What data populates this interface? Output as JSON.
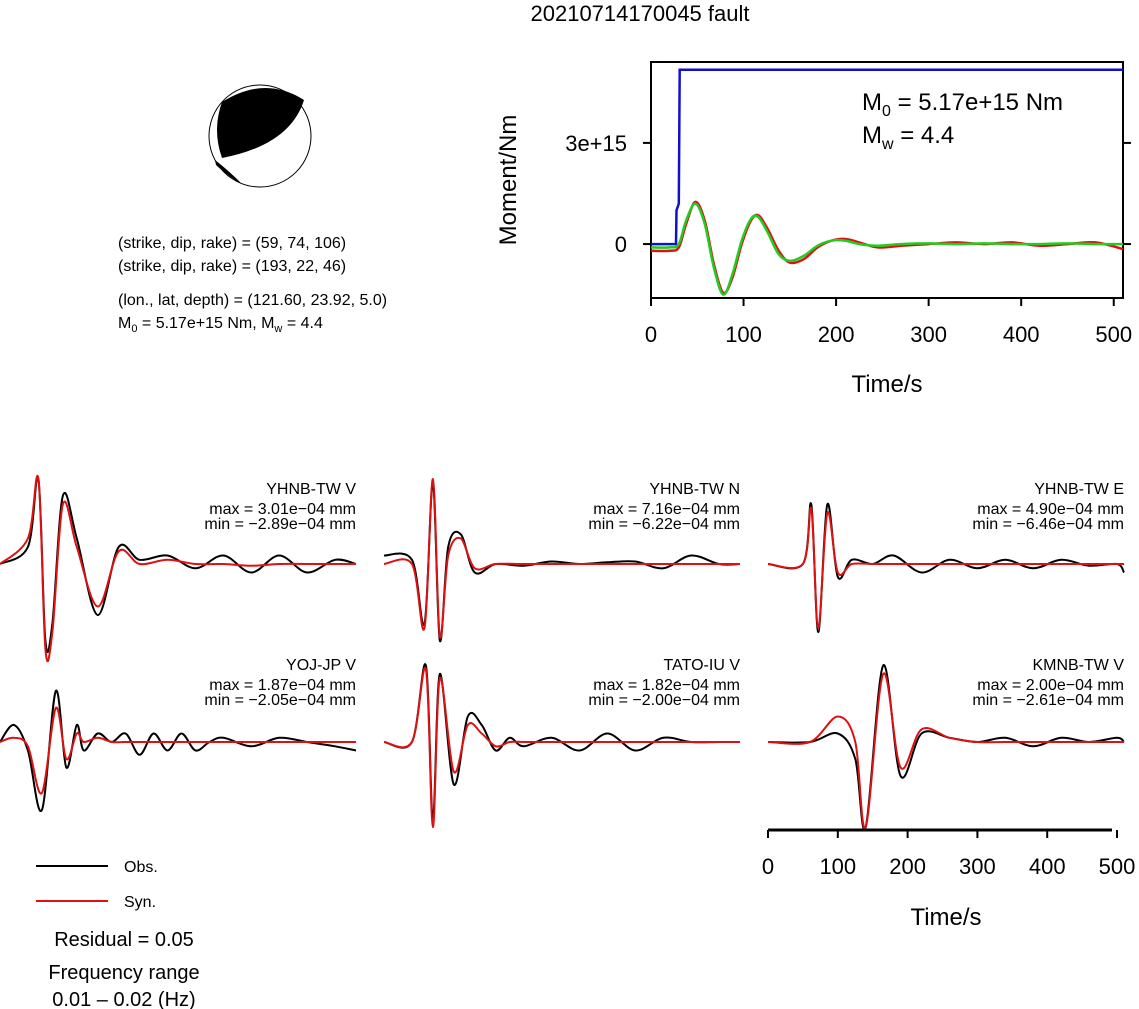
{
  "title": "20210714170045 fault",
  "mechanism": {
    "plane1": "(strike, dip, rake) = (59, 74, 106)",
    "plane2": "(strike, dip, rake) = (193, 22, 46)",
    "location": "(lon., lat, depth) = (121.60, 23.92, 5.0)",
    "moment_line": {
      "m_base": "M",
      "m0_sub": "0",
      "m0_rest": " = 5.17e+15 Nm, M",
      "mw_sub": "w",
      "mw_rest": " = 4.4"
    }
  },
  "moment_panel": {
    "ylabel": "Moment/Nm",
    "xlabel": "Time/s",
    "m0_label": {
      "base": "M",
      "sub": "0",
      "rest": " = 5.17e+15 Nm"
    },
    "mw_label": {
      "base": "M",
      "sub": "w",
      "rest": " = 4.4"
    },
    "ytick_labels": [
      "0",
      "3e+15"
    ],
    "ytick_values": [
      0,
      3000000000000000.0
    ],
    "xtick_labels": [
      "0",
      "100",
      "200",
      "300",
      "400",
      "500"
    ],
    "xtick_values": [
      0,
      100,
      200,
      300,
      400,
      500
    ],
    "xlim": [
      0,
      510
    ],
    "ylim": [
      -1600000000000000.0,
      5400000000000000.0
    ]
  },
  "wave_xaxis": {
    "xlabel": "Time/s",
    "xtick_labels": [
      "0",
      "100",
      "200",
      "300",
      "400",
      "500"
    ],
    "xtick_values": [
      0,
      100,
      200,
      300,
      400,
      500
    ],
    "xlim": [
      0,
      510
    ]
  },
  "legend": {
    "obs": "Obs.",
    "syn": "Syn."
  },
  "residual": "Residual = 0.05",
  "frequency": {
    "label": "Frequency range",
    "range": "0.01 – 0.02 (Hz)"
  },
  "colors": {
    "obs": "#000000",
    "syn": "#dd1111",
    "step": "#1111cc",
    "smooth": "#22cc22"
  },
  "chart_data": [
    {
      "type": "line",
      "name": "moment-rate-function",
      "xlabel": "Time/s",
      "ylabel": "Moment/Nm",
      "xlim": [
        0,
        510
      ],
      "ylim": [
        -1600000000000000.0,
        5400000000000000.0
      ],
      "series": [
        {
          "name": "step",
          "color": "#1111cc",
          "x": [
            0,
            27,
            27.5,
            30,
            31,
            510
          ],
          "y": [
            0,
            0,
            1000000000000000.0,
            1200000000000000.0,
            5170000000000000.0,
            5170000000000000.0
          ]
        },
        {
          "name": "red",
          "color": "#dd1111",
          "x": [
            0,
            20,
            30,
            38,
            48,
            58,
            68,
            78,
            88,
            98,
            108,
            116,
            126,
            138,
            150,
            165,
            180,
            195,
            210,
            225,
            245,
            270,
            300,
            330,
            360,
            390,
            420,
            450,
            480,
            510
          ],
          "y": [
            -200000000000000.0,
            -200000000000000.0,
            -100000000000000.0,
            600000000000000.0,
            1250000000000000.0,
            700000000000000.0,
            -600000000000000.0,
            -1450000000000000.0,
            -1000000000000000.0,
            0.0,
            700000000000000.0,
            850000000000000.0,
            450000000000000.0,
            -200000000000000.0,
            -550000000000000.0,
            -450000000000000.0,
            -100000000000000.0,
            100000000000000.0,
            150000000000000.0,
            50000000000000.0,
            -100000000000000.0,
            -50000000000000.0,
            0.0,
            50000000000000.0,
            0.0,
            50000000000000.0,
            -50000000000000.0,
            0.0,
            50000000000000.0,
            -150000000000000.0
          ]
        },
        {
          "name": "green",
          "color": "#22cc22",
          "x": [
            0,
            20,
            30,
            38,
            48,
            58,
            68,
            78,
            88,
            98,
            108,
            116,
            126,
            138,
            150,
            165,
            180,
            195,
            210,
            225,
            245,
            270,
            300,
            330,
            360,
            390,
            420,
            450,
            480,
            510
          ],
          "y": [
            -100000000000000.0,
            -100000000000000.0,
            0.0,
            700000000000000.0,
            1200000000000000.0,
            600000000000000.0,
            -700000000000000.0,
            -1500000000000000.0,
            -900000000000000.0,
            100000000000000.0,
            750000000000000.0,
            800000000000000.0,
            350000000000000.0,
            -300000000000000.0,
            -500000000000000.0,
            -350000000000000.0,
            -50000000000000.0,
            100000000000000.0,
            100000000000000.0,
            0.0,
            -50000000000000.0,
            0.0,
            20000000000000.0,
            0.0,
            20000000000000.0,
            0.0,
            0.0,
            20000000000000.0,
            0.0,
            0.0
          ]
        }
      ]
    },
    {
      "type": "line",
      "name": "YHNB-TW V",
      "station": "YHNB-TW V",
      "max": "max = 3.01e−04 mm",
      "min": "min = −2.89e−04 mm",
      "x": [
        0,
        40,
        55,
        65,
        75,
        90,
        110,
        140,
        170,
        200,
        240,
        280,
        320,
        360,
        400,
        440,
        480,
        510
      ],
      "obs": [
        0.0,
        0.2,
        1.0,
        -0.9,
        -0.7,
        0.8,
        0.3,
        -0.6,
        0.2,
        0.05,
        0.1,
        -0.05,
        0.1,
        -0.1,
        0.1,
        -0.1,
        0.05,
        0.0
      ],
      "syn": [
        0.0,
        0.3,
        1.0,
        -1.0,
        -0.8,
        0.7,
        0.2,
        -0.5,
        0.15,
        0.0,
        0.05,
        0.0,
        0.0,
        -0.02,
        0.0,
        0.0,
        0.0,
        0.0
      ]
    },
    {
      "type": "line",
      "name": "YHNB-TW N",
      "station": "YHNB-TW N",
      "max": "max = 7.16e−04 mm",
      "min": "min = −6.22e−04 mm",
      "x": [
        0,
        40,
        58,
        70,
        80,
        92,
        110,
        130,
        160,
        200,
        240,
        280,
        320,
        360,
        400,
        440,
        480,
        510
      ],
      "obs": [
        0.1,
        0.05,
        -0.7,
        0.95,
        -0.9,
        0.2,
        0.35,
        -0.1,
        0.0,
        -0.02,
        0.03,
        0.0,
        0.02,
        0.03,
        -0.05,
        0.1,
        0.0,
        0.0
      ],
      "syn": [
        0.0,
        0.0,
        -0.75,
        1.0,
        -0.85,
        0.1,
        0.3,
        -0.05,
        0.0,
        0.0,
        0.0,
        0.0,
        0.0,
        0.0,
        0.0,
        0.0,
        0.0,
        0.0
      ]
    },
    {
      "type": "line",
      "name": "YHNB-TW E",
      "station": "YHNB-TW E",
      "max": "max = 4.90e−04 mm",
      "min": "min = −6.46e−04 mm",
      "x": [
        0,
        50,
        62,
        72,
        85,
        100,
        120,
        150,
        180,
        220,
        260,
        300,
        340,
        380,
        420,
        460,
        500,
        510
      ],
      "obs": [
        0.0,
        0.0,
        0.7,
        -0.8,
        0.7,
        -0.15,
        0.05,
        0.0,
        0.1,
        -0.1,
        0.05,
        -0.05,
        0.05,
        -0.05,
        0.05,
        -0.02,
        0.0,
        -0.1
      ],
      "syn": [
        0.0,
        0.0,
        0.65,
        -0.75,
        0.6,
        -0.1,
        0.0,
        0.0,
        0.0,
        0.0,
        0.0,
        0.0,
        0.0,
        0.0,
        0.0,
        0.0,
        0.0,
        0.0
      ]
    },
    {
      "type": "line",
      "name": "YOJ-JP V",
      "station": "YOJ-JP V",
      "max": "max = 1.87e−04 mm",
      "min": "min = −2.05e−04 mm",
      "x": [
        0,
        20,
        40,
        60,
        80,
        95,
        110,
        120,
        140,
        160,
        180,
        200,
        220,
        240,
        260,
        280,
        300,
        320,
        360,
        400,
        440,
        480,
        510
      ],
      "obs": [
        0.0,
        0.2,
        -0.1,
        -0.8,
        0.6,
        -0.3,
        0.2,
        -0.1,
        0.1,
        0.0,
        0.1,
        -0.15,
        0.1,
        -0.1,
        0.1,
        -0.1,
        0.0,
        0.05,
        -0.05,
        0.05,
        0.0,
        -0.05,
        -0.1
      ],
      "syn": [
        0.0,
        0.05,
        -0.05,
        -0.6,
        0.4,
        -0.2,
        0.1,
        0.0,
        0.05,
        0.0,
        0.0,
        0.0,
        0.0,
        0.0,
        0.0,
        0.0,
        0.0,
        0.0,
        0.0,
        0.0,
        0.0,
        0.0,
        0.0
      ]
    },
    {
      "type": "line",
      "name": "TATO-IU V",
      "station": "TATO-IU V",
      "max": "max = 1.82e−04 mm",
      "min": "min = −2.00e−04 mm",
      "x": [
        0,
        40,
        60,
        70,
        80,
        100,
        120,
        140,
        160,
        180,
        200,
        240,
        280,
        320,
        360,
        400,
        440,
        480,
        510
      ],
      "obs": [
        0.0,
        0.0,
        0.9,
        -0.9,
        0.8,
        -0.5,
        0.3,
        0.2,
        -0.1,
        0.05,
        -0.05,
        0.05,
        -0.1,
        0.1,
        -0.1,
        0.05,
        0.0,
        0.0,
        0.0
      ],
      "syn": [
        0.0,
        0.0,
        0.85,
        -1.0,
        0.75,
        -0.35,
        0.2,
        0.1,
        -0.05,
        0.0,
        0.0,
        0.0,
        0.0,
        0.0,
        0.0,
        0.0,
        0.0,
        0.0,
        0.0
      ]
    },
    {
      "type": "line",
      "name": "KMNB-TW V",
      "station": "KMNB-TW V",
      "max": "max = 2.00e−04 mm",
      "min": "min = −2.61e−04 mm",
      "x": [
        0,
        60,
        100,
        125,
        140,
        165,
        190,
        220,
        260,
        300,
        340,
        380,
        420,
        460,
        500,
        510
      ],
      "obs": [
        0.0,
        0.0,
        0.1,
        -0.2,
        -1.0,
        0.9,
        -0.4,
        0.1,
        0.05,
        0.0,
        0.05,
        -0.05,
        0.05,
        0.0,
        0.05,
        0.0
      ],
      "syn": [
        0.0,
        0.0,
        0.3,
        0.0,
        -1.0,
        0.8,
        -0.3,
        0.15,
        0.05,
        0.0,
        0.0,
        0.0,
        0.0,
        0.0,
        0.0,
        0.0
      ]
    }
  ]
}
